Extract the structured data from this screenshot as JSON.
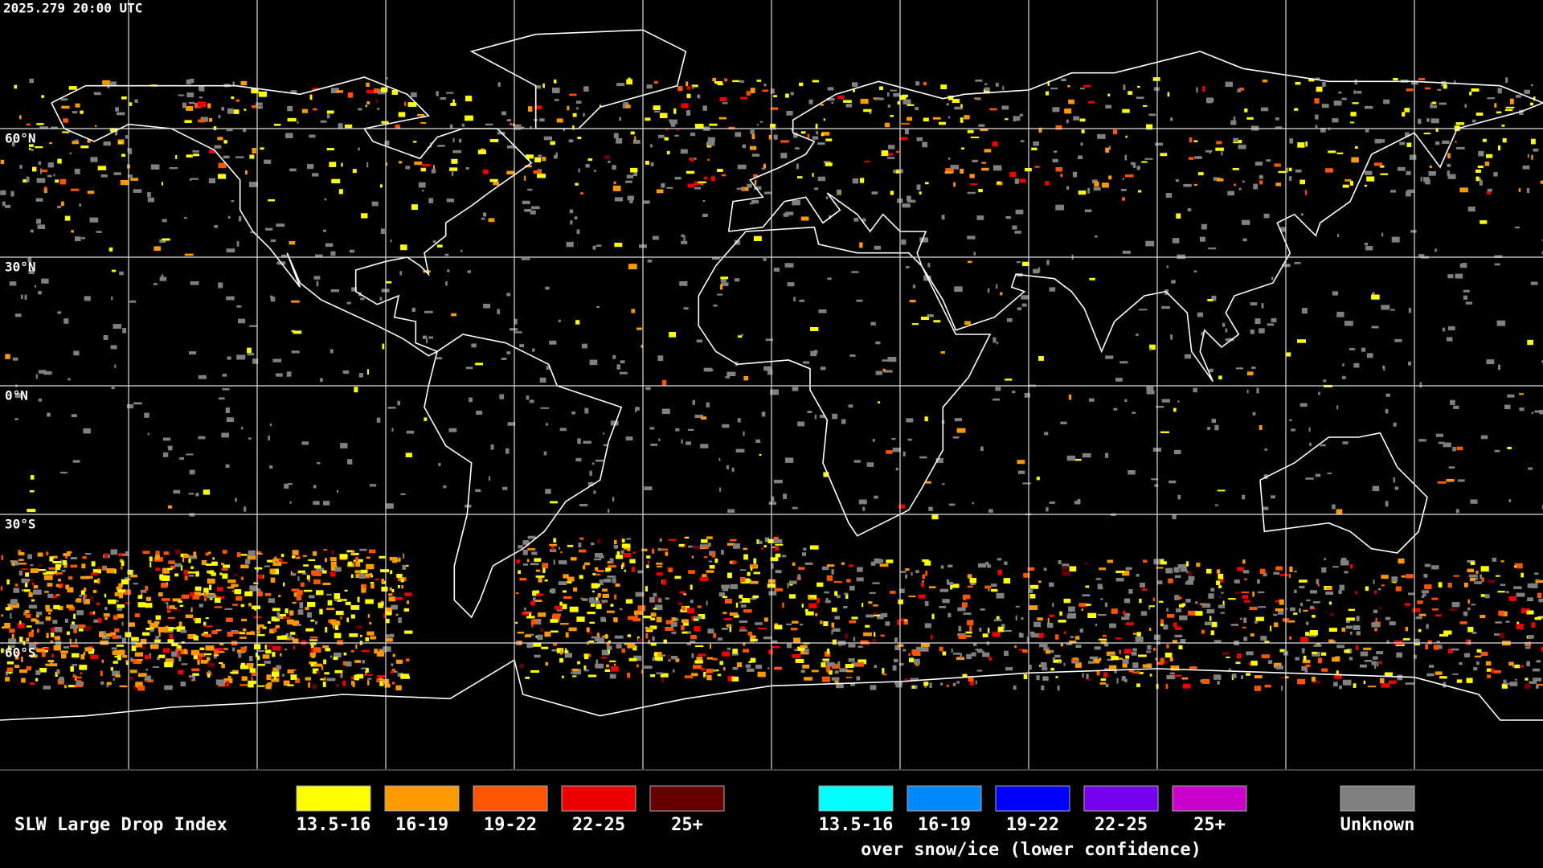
{
  "timestamp": "2025.279 20:00 UTC",
  "latitude_labels": [
    "60°N",
    "30°N",
    "0°N",
    "30°S",
    "60°S"
  ],
  "legend": {
    "title": "SLW Large Drop Index",
    "groups": [
      {
        "items": [
          {
            "label": "13.5-16",
            "color": "#ffff00"
          },
          {
            "label": "16-19",
            "color": "#ff9900"
          },
          {
            "label": "19-22",
            "color": "#ff5500"
          },
          {
            "label": "22-25",
            "color": "#ee0000"
          },
          {
            "label": "25+",
            "color": "#660000"
          }
        ]
      },
      {
        "items": [
          {
            "label": "13.5-16",
            "color": "#00ffff"
          },
          {
            "label": "16-19",
            "color": "#0088ff"
          },
          {
            "label": "19-22",
            "color": "#0000ff"
          },
          {
            "label": "22-25",
            "color": "#7700ee"
          },
          {
            "label": "25+",
            "color": "#cc00cc"
          }
        ],
        "note": "over snow/ice (lower confidence)"
      }
    ],
    "unknown": {
      "label": "Unknown",
      "color": "#808080"
    }
  }
}
